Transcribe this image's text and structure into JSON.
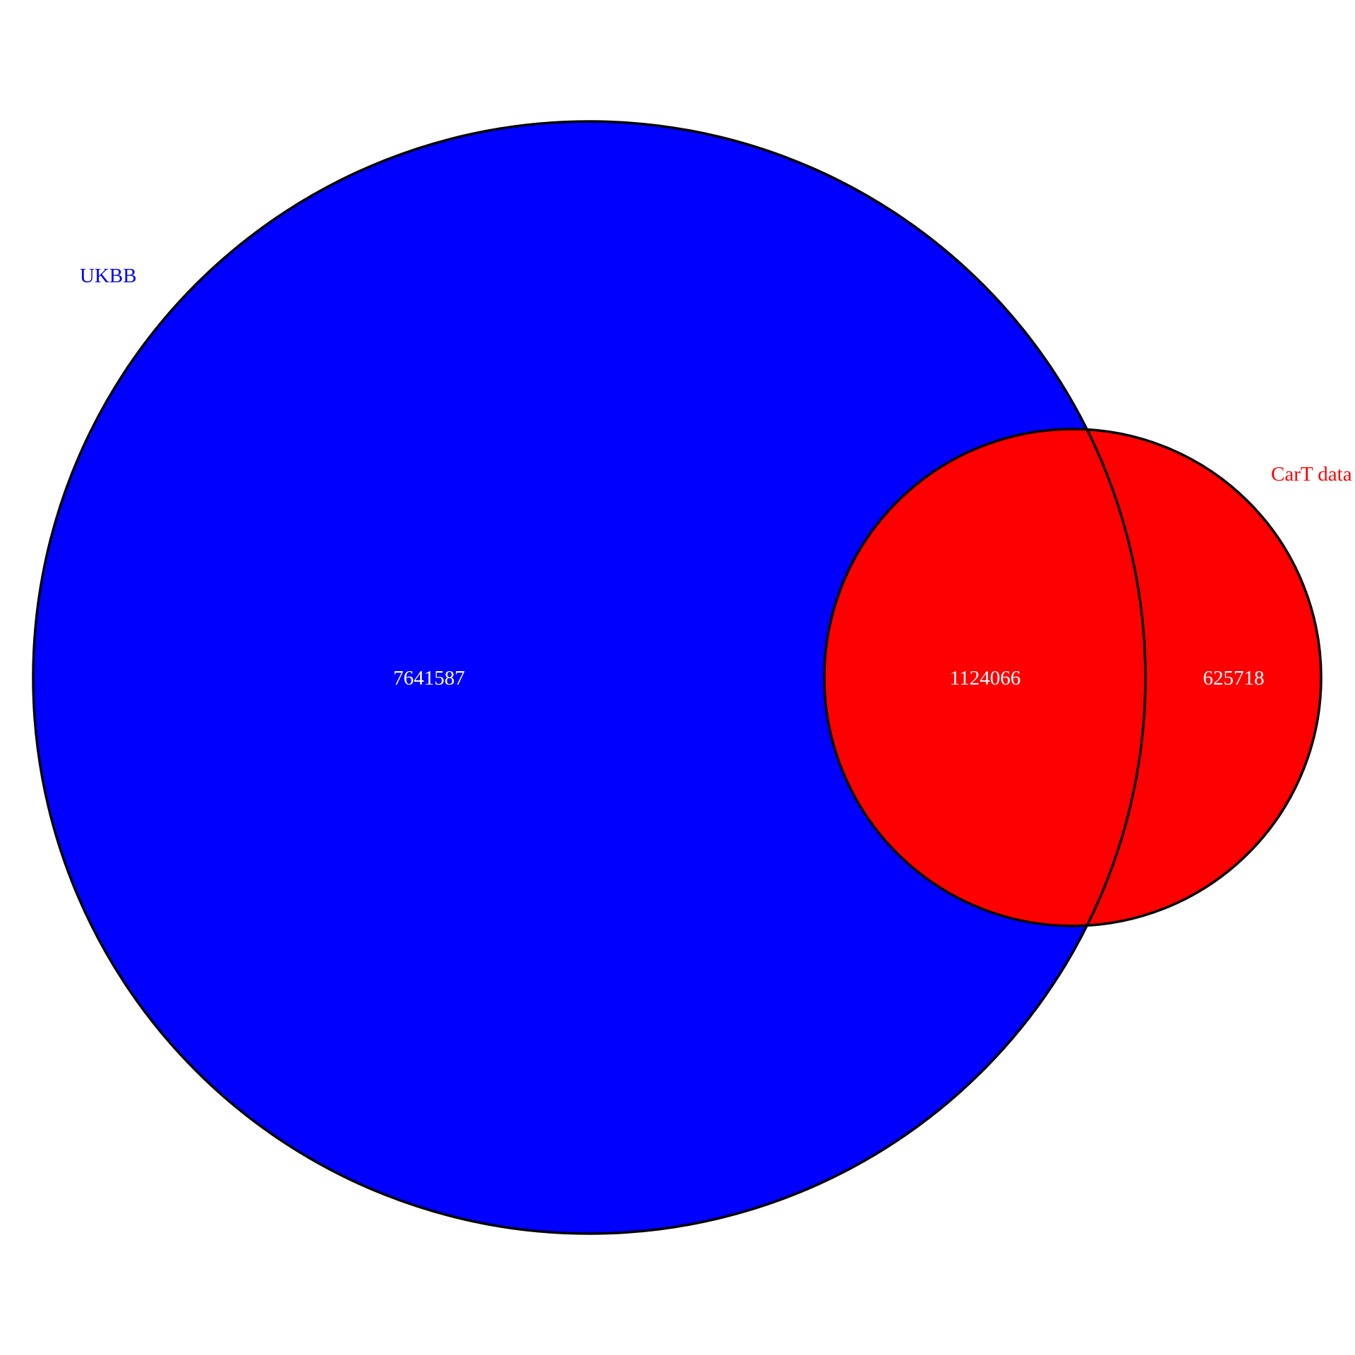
{
  "diagram": {
    "type": "venn",
    "sets": [
      {
        "id": "ukbb",
        "label": "UKBB",
        "color": "#0000ff"
      },
      {
        "id": "cart",
        "label": "CarT data",
        "color": "#ff0000"
      }
    ],
    "regions": {
      "ukbb_only": "7641587",
      "intersection": "1124066",
      "cart_only": "625718"
    },
    "outline_color": "#000000"
  }
}
